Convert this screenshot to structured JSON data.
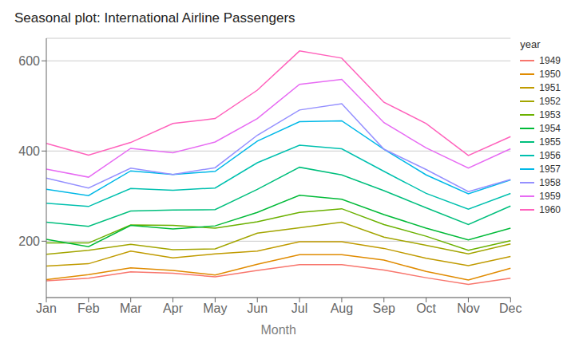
{
  "chart_data": {
    "type": "line",
    "title": "Seasonal plot: International Airline Passengers",
    "xlabel": "Month",
    "legend_title": "year",
    "categories": [
      "Jan",
      "Feb",
      "Mar",
      "Apr",
      "May",
      "Jun",
      "Jul",
      "Aug",
      "Sep",
      "Oct",
      "Nov",
      "Dec"
    ],
    "series": [
      {
        "name": "1949",
        "color": "#F8766D",
        "values": [
          112,
          118,
          132,
          129,
          121,
          135,
          148,
          148,
          136,
          119,
          104,
          118
        ]
      },
      {
        "name": "1950",
        "color": "#E08B00",
        "values": [
          115,
          126,
          141,
          135,
          125,
          149,
          170,
          170,
          158,
          133,
          114,
          140
        ]
      },
      {
        "name": "1951",
        "color": "#C09B00",
        "values": [
          145,
          150,
          178,
          163,
          172,
          178,
          199,
          199,
          184,
          162,
          146,
          166
        ]
      },
      {
        "name": "1952",
        "color": "#A3A500",
        "values": [
          171,
          180,
          193,
          181,
          183,
          218,
          230,
          242,
          209,
          191,
          172,
          194
        ]
      },
      {
        "name": "1953",
        "color": "#6BB100",
        "values": [
          196,
          196,
          236,
          235,
          229,
          243,
          264,
          272,
          237,
          211,
          180,
          201
        ]
      },
      {
        "name": "1954",
        "color": "#00BA38",
        "values": [
          204,
          188,
          235,
          227,
          234,
          264,
          302,
          293,
          259,
          229,
          203,
          229
        ]
      },
      {
        "name": "1955",
        "color": "#00BF7D",
        "values": [
          242,
          233,
          267,
          269,
          270,
          315,
          364,
          347,
          312,
          274,
          237,
          278
        ]
      },
      {
        "name": "1956",
        "color": "#00C0AF",
        "values": [
          284,
          277,
          317,
          313,
          318,
          374,
          413,
          405,
          355,
          306,
          271,
          306
        ]
      },
      {
        "name": "1957",
        "color": "#00B8E7",
        "values": [
          315,
          301,
          356,
          348,
          355,
          422,
          465,
          467,
          404,
          347,
          305,
          336
        ]
      },
      {
        "name": "1958",
        "color": "#9590FF",
        "values": [
          340,
          318,
          362,
          348,
          363,
          435,
          491,
          505,
          404,
          359,
          310,
          337
        ]
      },
      {
        "name": "1959",
        "color": "#E76BF3",
        "values": [
          360,
          342,
          406,
          396,
          420,
          472,
          548,
          559,
          463,
          407,
          362,
          405
        ]
      },
      {
        "name": "1960",
        "color": "#FF62BC",
        "values": [
          417,
          391,
          419,
          461,
          472,
          535,
          622,
          606,
          508,
          461,
          390,
          432
        ]
      }
    ],
    "ylim": [
      75,
      650
    ],
    "yticks": [
      200,
      400,
      600
    ],
    "grid": "y",
    "legend": "right"
  }
}
